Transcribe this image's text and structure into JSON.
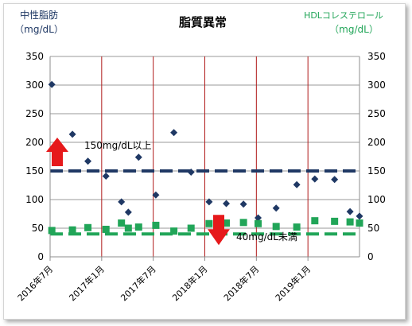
{
  "chart_data": {
    "type": "scatter",
    "title": "脂質異常",
    "left_axis_label": [
      "中性脂肪",
      "（mg/dL）"
    ],
    "right_axis_label": [
      "HDLコレステロール",
      "（mg/dL）"
    ],
    "ylim": [
      0,
      350
    ],
    "y_ticks": [
      "0",
      "50",
      "100",
      "150",
      "200",
      "250",
      "300",
      "350"
    ],
    "x_tick_labels": [
      "2016年7月",
      "2017年1月",
      "2017年7月",
      "2018年1月",
      "2018年7月",
      "2019年1月"
    ],
    "x_tick_months": [
      0,
      6,
      12,
      18,
      24,
      30
    ],
    "xlim_months": [
      0,
      36
    ],
    "series": [
      {
        "marker": "diamond",
        "color": "#1f3864",
        "x_months": [
          0.2,
          2.6,
          4.4,
          6.5,
          8.3,
          9.1,
          10.3,
          12.3,
          14.4,
          16.4,
          18.5,
          20.5,
          22.5,
          24.2,
          26.3,
          28.7,
          30.8,
          33.1,
          34.9,
          36.0
        ],
        "values": [
          301,
          214,
          167,
          141,
          96,
          78,
          174,
          108,
          217,
          148,
          96,
          93,
          92,
          68,
          85,
          126,
          136,
          135,
          79,
          71
        ]
      },
      {
        "marker": "square",
        "color": "#21a558",
        "x_months": [
          0.2,
          2.6,
          4.4,
          6.5,
          8.3,
          9.1,
          10.3,
          12.3,
          14.4,
          16.4,
          18.5,
          20.5,
          22.5,
          24.2,
          26.3,
          28.7,
          30.8,
          33.1,
          34.9,
          36.0
        ],
        "values": [
          46,
          47,
          51,
          48,
          59,
          50,
          52,
          55,
          45,
          50,
          58,
          59,
          60,
          58,
          53,
          52,
          63,
          62,
          61,
          59
        ]
      }
    ],
    "reference_lines": [
      {
        "value": 150,
        "color": "#1f3864",
        "label": "150mg/dL以上",
        "arrow": "up",
        "arrow_color": "#e6191b"
      },
      {
        "value": 40,
        "color": "#21a558",
        "label": "40mg/dL未満",
        "arrow": "down",
        "arrow_color": "#e6191b"
      }
    ],
    "period_divider_color": "#b01a1a",
    "grid": true
  }
}
